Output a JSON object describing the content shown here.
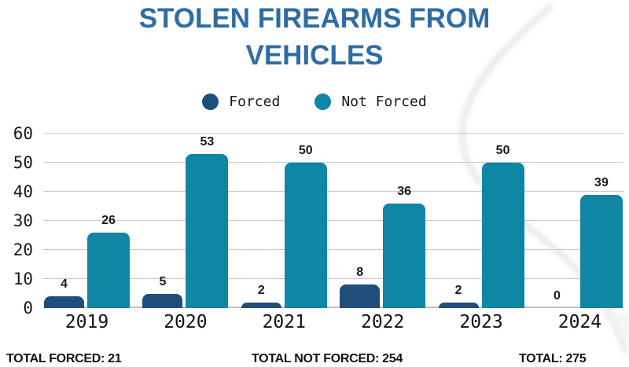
{
  "title": "STOLEN FIREARMS FROM VEHICLES",
  "legend": {
    "items": [
      {
        "label": "Forced",
        "color": "#1F4E7B"
      },
      {
        "label": "Not Forced",
        "color": "#0E86A4"
      }
    ]
  },
  "chart_data": {
    "type": "bar",
    "title": "STOLEN FIREARMS FROM VEHICLES",
    "categories": [
      "2019",
      "2020",
      "2021",
      "2022",
      "2023",
      "2024"
    ],
    "series": [
      {
        "name": "Forced",
        "color": "#1F4E7B",
        "values": [
          4,
          5,
          2,
          8,
          2,
          0
        ]
      },
      {
        "name": "Not Forced",
        "color": "#0E86A4",
        "values": [
          26,
          53,
          50,
          36,
          50,
          39
        ]
      }
    ],
    "xlabel": "",
    "ylabel": "",
    "ylim": [
      0,
      60
    ],
    "yticks": [
      0,
      10,
      20,
      30,
      40,
      50,
      60
    ],
    "grid": true,
    "legend_position": "top",
    "bar_value_labels": true
  },
  "totals": {
    "forced": "TOTAL FORCED: 21",
    "not_forced": "TOTAL NOT FORCED: 254",
    "overall": "TOTAL: 275"
  },
  "colors": {
    "title_blue": "#2E6CA4",
    "forced_navy": "#1F4E7B",
    "not_forced_teal": "#0E86A4",
    "grid_gray": "#C9C9C9",
    "text_dark": "#1A1A1A",
    "swoosh_gray": "#EBEBEB"
  }
}
